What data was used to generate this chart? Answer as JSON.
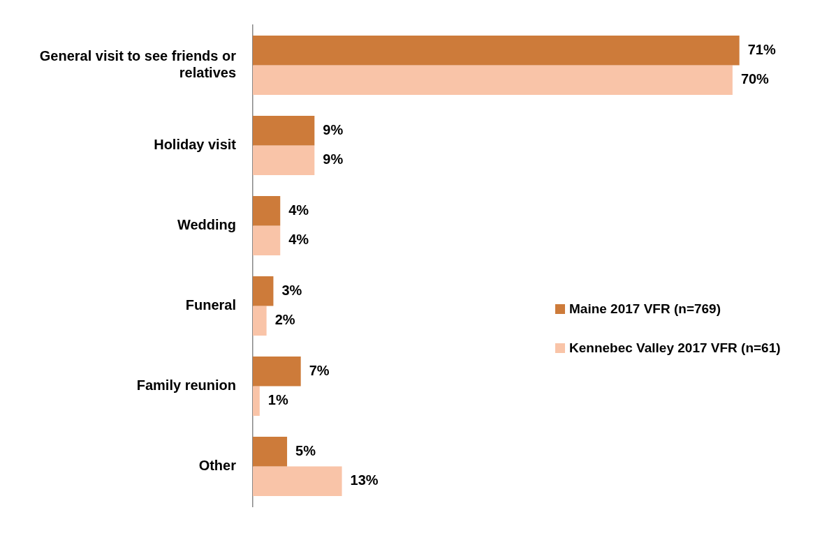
{
  "chart_data": {
    "type": "bar",
    "orientation": "horizontal",
    "categories": [
      "General visit to see friends or relatives",
      "Holiday visit",
      "Wedding",
      "Funeral",
      "Family reunion",
      "Other"
    ],
    "series": [
      {
        "name": "Maine 2017 VFR (n=769)",
        "color": "#cd7b3a",
        "values": [
          71,
          9,
          4,
          3,
          7,
          5
        ],
        "value_labels": [
          "71%",
          "9%",
          "4%",
          "3%",
          "7%",
          "5%"
        ]
      },
      {
        "name": "Kennebec Valley 2017 VFR (n=61)",
        "color": "#f9c4a8",
        "values": [
          70,
          9,
          4,
          2,
          1,
          13
        ],
        "value_labels": [
          "70%",
          "9%",
          "4%",
          "2%",
          "1%",
          "13%"
        ]
      }
    ],
    "tick_labels": "y",
    "legend": "right"
  }
}
